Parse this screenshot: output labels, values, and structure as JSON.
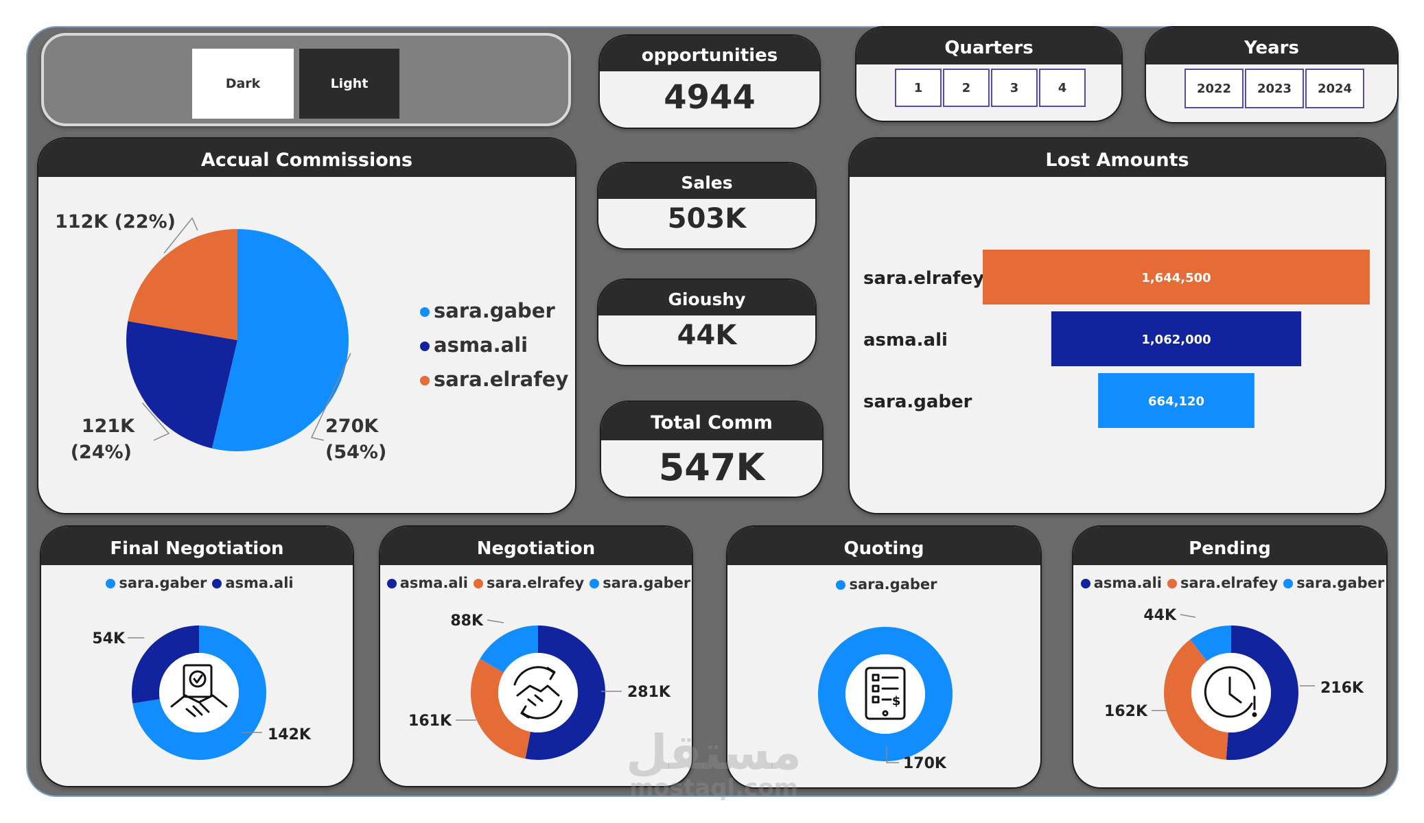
{
  "theme_toggle": {
    "dark_label": "Dark",
    "light_label": "Light"
  },
  "kpis": {
    "opportunities": {
      "title": "opportunities",
      "value": "4944"
    },
    "sales": {
      "title": "Sales",
      "value": "503K"
    },
    "gioushy": {
      "title": "Gioushy",
      "value": "44K"
    },
    "total_comm": {
      "title": "Total Comm",
      "value": "547K"
    }
  },
  "quarters": {
    "title": "Quarters",
    "options": [
      "1",
      "2",
      "3",
      "4"
    ]
  },
  "years": {
    "title": "Years",
    "options": [
      "2022",
      "2023",
      "2024"
    ]
  },
  "colors": {
    "sara_gaber": "#118dff",
    "asma_ali": "#12239e",
    "sara_elrafey": "#e66c37",
    "header": "#2b2b2b",
    "panel": "#f2f2f2",
    "frame": "#6b6b6b"
  },
  "icons": {
    "final_negotiation": "contract-handshake-icon",
    "negotiation": "handshake-cycle-icon",
    "quoting": "invoice-icon",
    "pending": "clock-warning-icon"
  },
  "chart_data": [
    {
      "type": "pie",
      "title": "Accual Commissions",
      "legend": [
        "sara.gaber",
        "asma.ali",
        "sara.elrafey"
      ],
      "slices": [
        {
          "name": "sara.gaber",
          "value": 270,
          "label": "270K",
          "pct": "(54%)"
        },
        {
          "name": "asma.ali",
          "value": 121,
          "label": "121K",
          "pct": "(24%)"
        },
        {
          "name": "sara.elrafey",
          "value": 112,
          "label": "112K (22%)",
          "pct": ""
        }
      ]
    },
    {
      "type": "bar",
      "title": "Lost Amounts",
      "categories": [
        "sara.elrafey",
        "asma.ali",
        "sara.gaber"
      ],
      "values": [
        1644500,
        1062000,
        664120
      ],
      "labels": [
        "1,644,500",
        "1,062,000",
        "664,120"
      ]
    },
    {
      "type": "pie",
      "donut": true,
      "title": "Final Negotiation",
      "legend": [
        "sara.gaber",
        "asma.ali"
      ],
      "slices": [
        {
          "name": "sara.gaber",
          "value": 142,
          "label": "142K"
        },
        {
          "name": "asma.ali",
          "value": 54,
          "label": "54K"
        }
      ]
    },
    {
      "type": "pie",
      "donut": true,
      "title": "Negotiation",
      "legend": [
        "asma.ali",
        "sara.elrafey",
        "sara.gaber"
      ],
      "slices": [
        {
          "name": "asma.ali",
          "value": 281,
          "label": "281K"
        },
        {
          "name": "sara.elrafey",
          "value": 161,
          "label": "161K"
        },
        {
          "name": "sara.gaber",
          "value": 88,
          "label": "88K"
        }
      ]
    },
    {
      "type": "pie",
      "donut": true,
      "title": "Quoting",
      "legend": [
        "sara.gaber"
      ],
      "slices": [
        {
          "name": "sara.gaber",
          "value": 170,
          "label": "170K"
        }
      ]
    },
    {
      "type": "pie",
      "donut": true,
      "title": "Pending",
      "legend": [
        "asma.ali",
        "sara.elrafey",
        "sara.gaber"
      ],
      "slices": [
        {
          "name": "asma.ali",
          "value": 216,
          "label": "216K"
        },
        {
          "name": "sara.elrafey",
          "value": 162,
          "label": "162K"
        },
        {
          "name": "sara.gaber",
          "value": 44,
          "label": "44K"
        }
      ]
    }
  ],
  "watermark": {
    "arabic": "مستقل",
    "latin": "mostaql.com"
  }
}
